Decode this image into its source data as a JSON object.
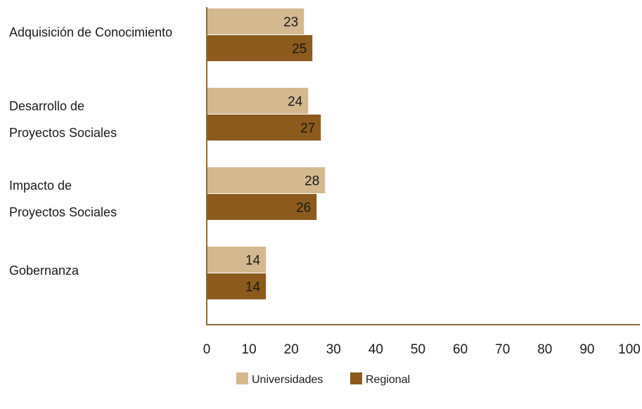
{
  "chart_data": {
    "type": "bar",
    "orientation": "horizontal",
    "categories": [
      [
        "Adquisición de Conocimiento"
      ],
      [
        "Desarrollo de",
        "Proyectos Sociales"
      ],
      [
        "Impacto de",
        "Proyectos Sociales"
      ],
      [
        "Gobernanza"
      ]
    ],
    "series": [
      {
        "name": "Universidades",
        "color": "#d4b88f",
        "values": [
          23,
          24,
          28,
          14
        ]
      },
      {
        "name": "Regional",
        "color": "#8b5a1c",
        "values": [
          25,
          27,
          26,
          14
        ]
      }
    ],
    "xlim": [
      0,
      100
    ],
    "xticks": [
      0,
      10,
      20,
      30,
      40,
      50,
      60,
      70,
      80,
      90,
      100
    ],
    "axis_color": "#8b6a3e",
    "grid": false,
    "legend_position": "bottom-center"
  }
}
